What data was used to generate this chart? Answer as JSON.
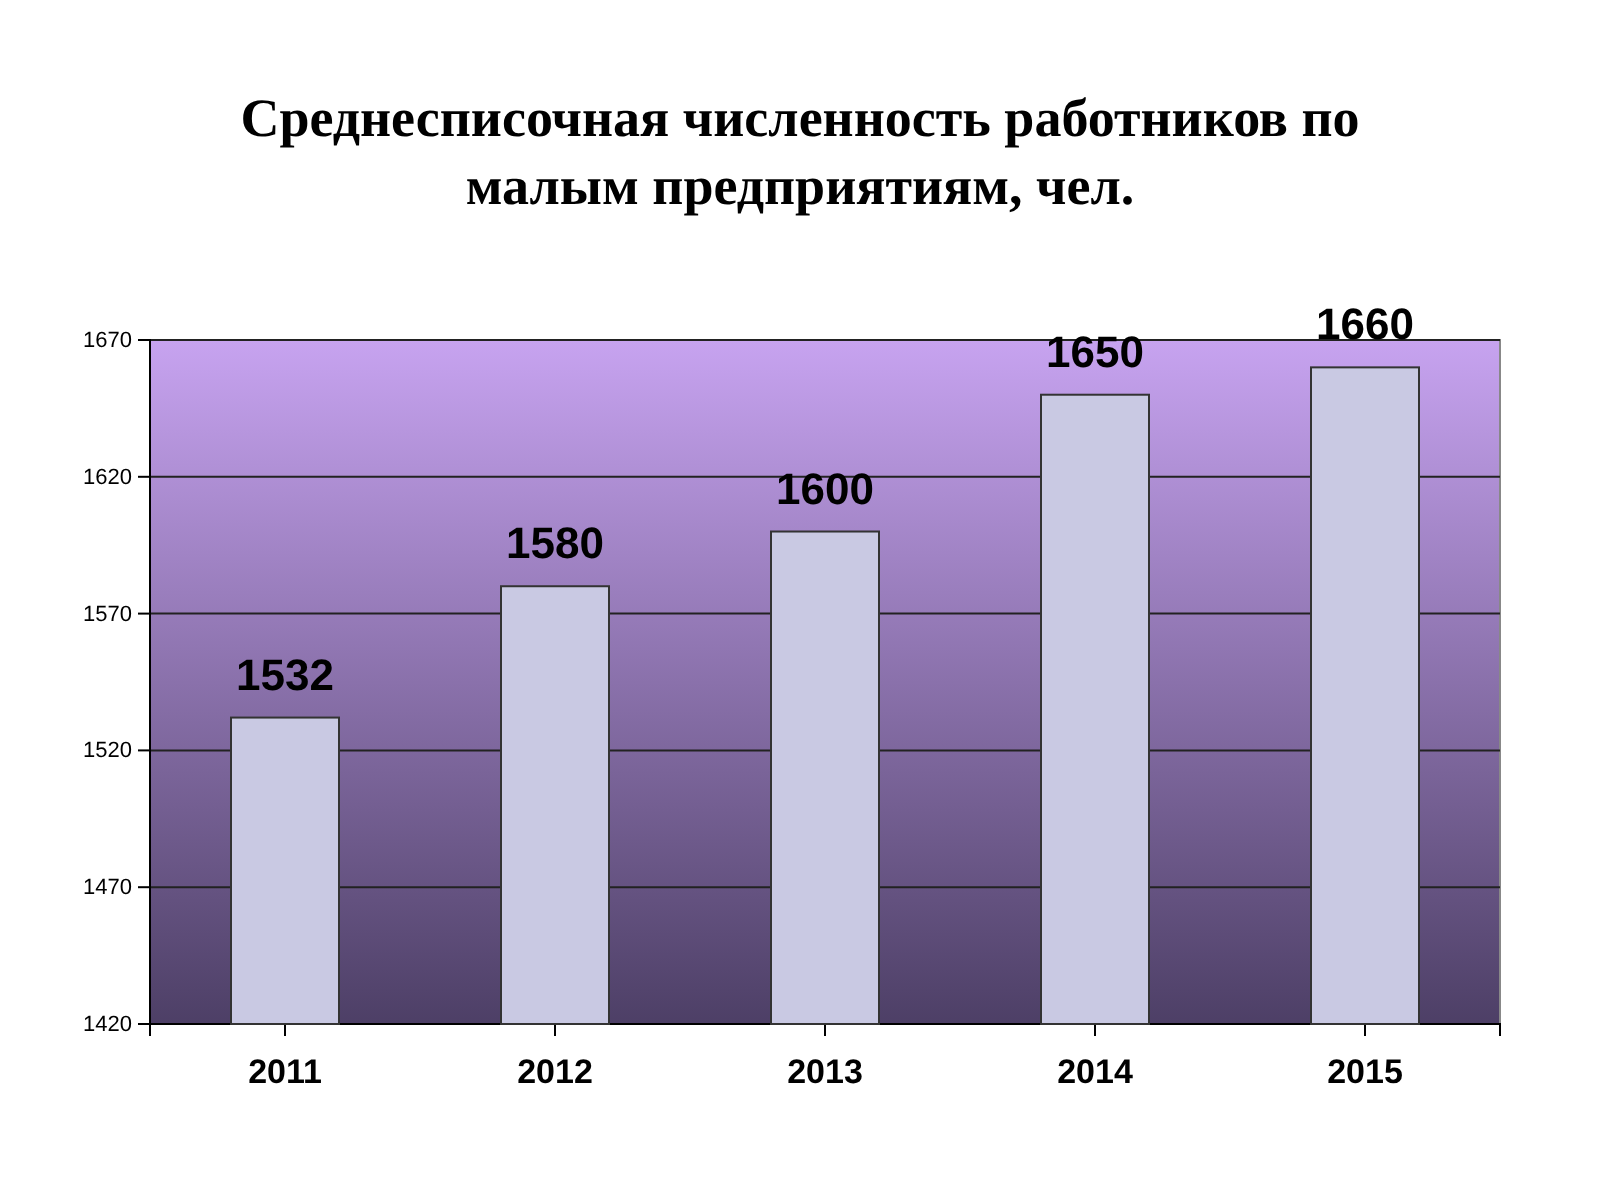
{
  "chart_data": {
    "type": "bar",
    "title": "Среднесписочная численность работников по малым предприятиям, чел.",
    "categories": [
      "2011",
      "2012",
      "2013",
      "2014",
      "2015"
    ],
    "values": [
      1532,
      1580,
      1600,
      1650,
      1660
    ],
    "color": "#c9c9e3",
    "ylim": [
      1420,
      1670
    ],
    "yticks": [
      1420,
      1470,
      1520,
      1570,
      1620,
      1670
    ],
    "grid": "y",
    "data_labels": true
  }
}
